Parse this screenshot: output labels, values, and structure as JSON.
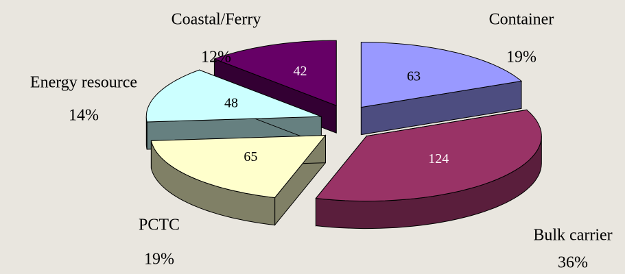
{
  "chart_data": {
    "type": "pie3d",
    "categories": [
      "Container",
      "Bulk carrier",
      "PCTC",
      "Energy resource",
      "Coastal/Ferry"
    ],
    "values": [
      63,
      124,
      65,
      48,
      42
    ],
    "percent_labels": [
      "19%",
      "36%",
      "19%",
      "14%",
      "12%"
    ],
    "colors": [
      "#9999ff",
      "#993366",
      "#ffffcc",
      "#ccffff",
      "#660066"
    ],
    "side_colors": [
      "#4d4d80",
      "#5a1e3c",
      "#808066",
      "#668080",
      "#330033"
    ]
  }
}
